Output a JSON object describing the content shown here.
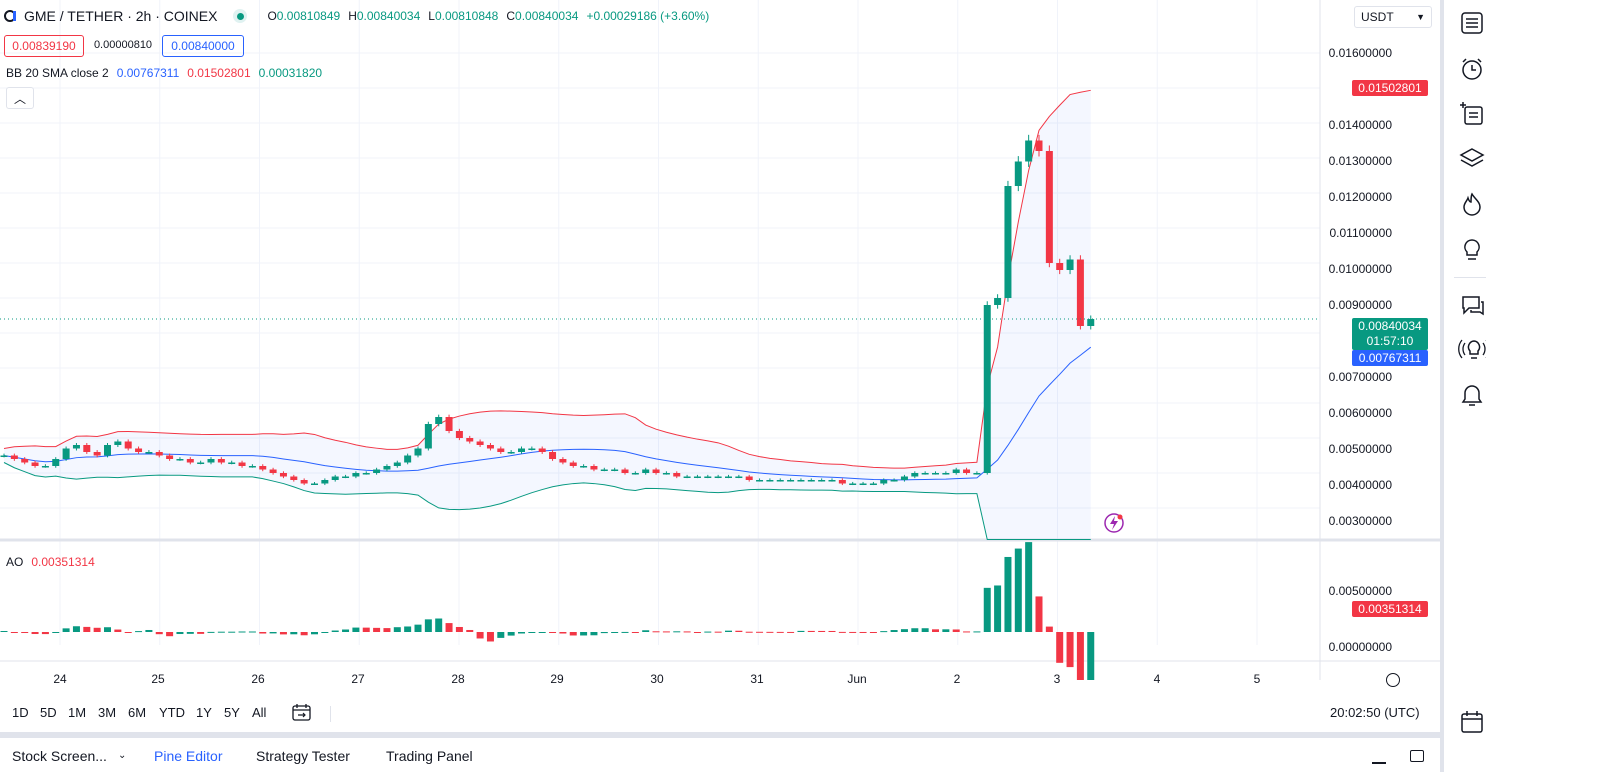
{
  "header": {
    "symbol": "GME / TETHER · 2h · COINEX",
    "o_label": "O",
    "o_value": "0.00810849",
    "h_label": "H",
    "h_value": "0.00840034",
    "l_label": "L",
    "l_value": "0.00810848",
    "c_label": "C",
    "c_value": "0.00840034",
    "change": "+0.00029186 (+3.60%)"
  },
  "trade": {
    "sell": "0.00839190",
    "spread": "0.00000810",
    "buy": "0.00840000"
  },
  "bb": {
    "label": "BB 20 SMA close 2",
    "basis": "0.00767311",
    "upper": "0.01502801",
    "lower": "0.00031820"
  },
  "ao": {
    "label": "AO",
    "value": "0.00351314"
  },
  "currency": "USDT",
  "price_axis": [
    "0.01600000",
    "0.01400000",
    "0.01300000",
    "0.01200000",
    "0.01100000",
    "0.01000000",
    "0.00900000",
    "0.00700000",
    "0.00600000",
    "0.00500000",
    "0.00400000",
    "0.00300000"
  ],
  "price_tags": {
    "upper": "0.01502801",
    "last": "0.00840034",
    "countdown": "01:57:10",
    "basis": "0.00767311"
  },
  "ao_axis": [
    "0.00500000",
    "0.00000000"
  ],
  "ao_tag": "0.00351314",
  "time_axis": [
    "24",
    "25",
    "26",
    "27",
    "28",
    "29",
    "30",
    "31",
    "Jun",
    "2",
    "3",
    "4",
    "5"
  ],
  "ranges": [
    "1D",
    "5D",
    "1M",
    "3M",
    "6M",
    "YTD",
    "1Y",
    "5Y",
    "All"
  ],
  "clock": "20:02:50 (UTC)",
  "bottom_tabs": [
    "Stock Screen...",
    "Pine Editor",
    "Strategy Tester",
    "Trading Panel"
  ],
  "colors": {
    "up": "#089981",
    "down": "#f23645",
    "basis": "#2962ff",
    "accent": "#2962ff"
  },
  "chart_data": {
    "type": "candlestick",
    "interval": "2h",
    "series": [
      {
        "name": "GME / TETHER",
        "x_start": "23",
        "x_end": "3",
        "note_values": "approximate closes per 2h bar, in USDT"
      }
    ],
    "closes": [
      0.0045,
      0.0044,
      0.0043,
      0.0042,
      0.0042,
      0.0044,
      0.0047,
      0.0048,
      0.0046,
      0.0045,
      0.0048,
      0.0049,
      0.0047,
      0.0046,
      0.0046,
      0.0045,
      0.0044,
      0.0044,
      0.0043,
      0.0043,
      0.0044,
      0.0043,
      0.0043,
      0.0042,
      0.0042,
      0.0041,
      0.004,
      0.0039,
      0.0038,
      0.0037,
      0.0037,
      0.0038,
      0.0039,
      0.0039,
      0.004,
      0.004,
      0.0041,
      0.0042,
      0.0043,
      0.0045,
      0.0047,
      0.0054,
      0.0056,
      0.0052,
      0.005,
      0.0049,
      0.0048,
      0.0047,
      0.0046,
      0.0046,
      0.0047,
      0.0047,
      0.0046,
      0.0044,
      0.0043,
      0.0042,
      0.0042,
      0.0041,
      0.0041,
      0.0041,
      0.004,
      0.004,
      0.0041,
      0.004,
      0.004,
      0.0039,
      0.0039,
      0.0039,
      0.0039,
      0.0039,
      0.0039,
      0.0039,
      0.0038,
      0.0038,
      0.0038,
      0.0038,
      0.0038,
      0.0038,
      0.0038,
      0.0038,
      0.0038,
      0.0037,
      0.0037,
      0.0037,
      0.0037,
      0.0038,
      0.0038,
      0.0039,
      0.004,
      0.004,
      0.004,
      0.004,
      0.0041,
      0.004,
      0.004,
      0.0088,
      0.009,
      0.0122,
      0.0129,
      0.0135,
      0.0132,
      0.01,
      0.0098,
      0.0101,
      0.0082,
      0.0084
    ],
    "bb_upper_end": 0.01502801,
    "bb_basis_end": 0.00767311,
    "ao_end": 0.00351314
  }
}
